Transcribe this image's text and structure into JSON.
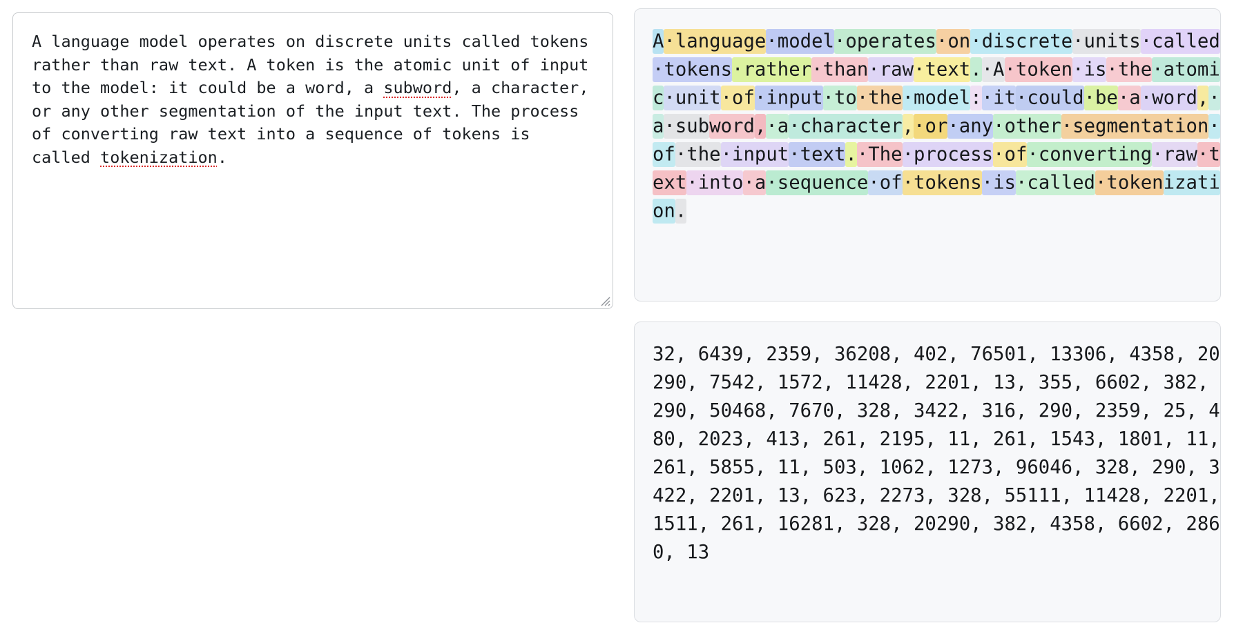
{
  "page": {
    "background": "#ffffff"
  },
  "input_panel": {
    "segments": [
      {
        "text": "A language model operates on discrete units called tokens rather than raw text. A token is the atomic unit of input to the model: it could be a word, a ",
        "misspelled": false
      },
      {
        "text": "subword",
        "misspelled": true
      },
      {
        "text": ", a character, or any other segmentation of the input text. The process of converting raw text into a sequence of tokens is called ",
        "misspelled": false
      },
      {
        "text": "tokenization",
        "misspelled": true
      },
      {
        "text": ".",
        "misspelled": false
      }
    ],
    "spellcheck_color": "#d92b2b"
  },
  "tokenizer_panel": {
    "space_glyph": "·",
    "tokens": [
      {
        "text": "A",
        "color": "#b8e2f2"
      },
      {
        "text": "·language",
        "color": "#f6e096"
      },
      {
        "text": "·model",
        "color": "#bfcaf3"
      },
      {
        "text": "·operates",
        "color": "#c2ebd0"
      },
      {
        "text": "·on",
        "color": "#f6d0a2"
      },
      {
        "text": "·discrete",
        "color": "#bee9f4"
      },
      {
        "text": "·units",
        "color": "#e3e4e7"
      },
      {
        "text": "·called",
        "color": "#e1d3f8"
      },
      {
        "text": "·tokens",
        "color": "#c4cdf5"
      },
      {
        "text": "·rather",
        "color": "#dcf2a0"
      },
      {
        "text": "·than",
        "color": "#f6c7cd"
      },
      {
        "text": "·raw",
        "color": "#ded5f5"
      },
      {
        "text": "·text",
        "color": "#f8ee9e"
      },
      {
        "text": ".",
        "color": "#c4edd3"
      },
      {
        "text": "·A",
        "color": "#e5e6e9"
      },
      {
        "text": "·token",
        "color": "#f6c5ca"
      },
      {
        "text": "·is",
        "color": "#e3d8f7"
      },
      {
        "text": "·the",
        "color": "#f7cbd1"
      },
      {
        "text": "·atomic",
        "color": "#bfe9da"
      },
      {
        "text": "·unit",
        "color": "#d2daf4"
      },
      {
        "text": "·of",
        "color": "#f7e79e"
      },
      {
        "text": "·input",
        "color": "#bfccf3"
      },
      {
        "text": "·to",
        "color": "#c6eed6"
      },
      {
        "text": "·the",
        "color": "#f5d3a7"
      },
      {
        "text": "·model",
        "color": "#c0eaf3"
      },
      {
        "text": ":",
        "color": "#efdff3"
      },
      {
        "text": "·it",
        "color": "#c7d2f6"
      },
      {
        "text": "·could",
        "color": "#bfccf1"
      },
      {
        "text": "·be",
        "color": "#daf1a3"
      },
      {
        "text": "·a",
        "color": "#f6cad0"
      },
      {
        "text": "·word",
        "color": "#dcd3f5"
      },
      {
        "text": ",",
        "color": "#f7ea9f"
      },
      {
        "text": "·a",
        "color": "#c9ece2"
      },
      {
        "text": "·sub",
        "color": "#e3e4e6"
      },
      {
        "text": "word",
        "color": "#f5c6cb"
      },
      {
        "text": ",",
        "color": "#f3bac0"
      },
      {
        "text": "·a",
        "color": "#c8efd7"
      },
      {
        "text": "·character",
        "color": "#bfeadd"
      },
      {
        "text": ",",
        "color": "#f8eca4"
      },
      {
        "text": "·or",
        "color": "#f3d87c"
      },
      {
        "text": "·any",
        "color": "#c1cef4"
      },
      {
        "text": "·other",
        "color": "#c5eecf"
      },
      {
        "text": "·segmentation",
        "color": "#f3d09e"
      },
      {
        "text": "·of",
        "color": "#c2eaf1"
      },
      {
        "text": "·the",
        "color": "#e3e4e7"
      },
      {
        "text": "·input",
        "color": "#ded5f5"
      },
      {
        "text": "·text",
        "color": "#c2ccf3"
      },
      {
        "text": ".",
        "color": "#e7f4a0"
      },
      {
        "text": "·The",
        "color": "#f5c3c8"
      },
      {
        "text": "·process",
        "color": "#ded4f6"
      },
      {
        "text": "·of",
        "color": "#f7e69c"
      },
      {
        "text": "·converting",
        "color": "#c3eecb"
      },
      {
        "text": "·raw",
        "color": "#e4d9f3"
      },
      {
        "text": "·text",
        "color": "#f5c0c5"
      },
      {
        "text": "·into",
        "color": "#edd5ef"
      },
      {
        "text": "·a",
        "color": "#f6c9cf"
      },
      {
        "text": "·sequence",
        "color": "#bbebd1"
      },
      {
        "text": "·of",
        "color": "#c8daf3"
      },
      {
        "text": "·tokens",
        "color": "#f6df93"
      },
      {
        "text": "·is",
        "color": "#c6d0f5"
      },
      {
        "text": "·called",
        "color": "#c8f0d3"
      },
      {
        "text": "·token",
        "color": "#f4ce9b"
      },
      {
        "text": "ization",
        "color": "#bfe9f1"
      },
      {
        "text": ".",
        "color": "#e4e5e7"
      }
    ]
  },
  "ids_panel": {
    "ids_text": "32, 6439, 2359, 36208, 402, 76501, 13306, 4358, 20290, 7542, 1572, 11428, 2201, 13, 355, 6602, 382, 290, 50468, 7670, 328, 3422, 316, 290, 2359, 25, 480, 2023, 413, 261, 2195, 11, 261, 1543, 1801, 11, 261, 5855, 11, 503, 1062, 1273, 96046, 328, 290, 3422, 2201, 13, 623, 2273, 328, 55111, 11428, 2201, 1511, 261, 16281, 328, 20290, 382, 4358, 6602, 2860, 13"
  }
}
